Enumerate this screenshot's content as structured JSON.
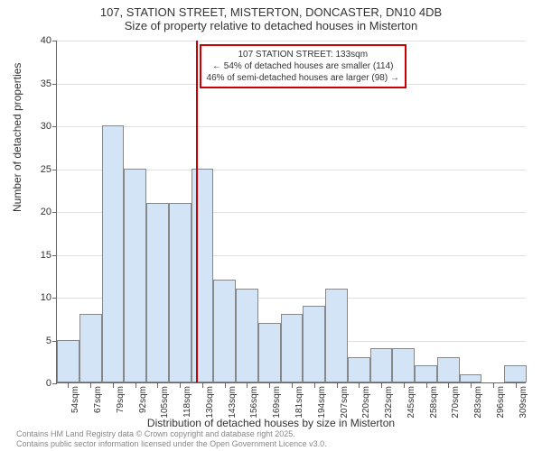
{
  "title": "107, STATION STREET, MISTERTON, DONCASTER, DN10 4DB",
  "subtitle": "Size of property relative to detached houses in Misterton",
  "chart": {
    "type": "histogram",
    "x_categories": [
      "54sqm",
      "67sqm",
      "79sqm",
      "92sqm",
      "105sqm",
      "118sqm",
      "130sqm",
      "143sqm",
      "156sqm",
      "169sqm",
      "181sqm",
      "194sqm",
      "207sqm",
      "220sqm",
      "232sqm",
      "245sqm",
      "258sqm",
      "270sqm",
      "283sqm",
      "296sqm",
      "309sqm"
    ],
    "values": [
      5,
      8,
      30,
      25,
      21,
      21,
      25,
      12,
      11,
      7,
      8,
      9,
      11,
      3,
      4,
      4,
      2,
      3,
      1,
      0,
      2
    ],
    "bar_color": "#d4e4f7",
    "bar_border_color": "#888888",
    "background_color": "#ffffff",
    "grid_color": "#e0e0e0",
    "ylim": [
      0,
      40
    ],
    "ytick_step": 5,
    "yticks": [
      0,
      5,
      10,
      15,
      20,
      25,
      30,
      35,
      40
    ],
    "ylabel": "Number of detached properties",
    "xlabel": "Distribution of detached houses by size in Misterton",
    "label_fontsize": 12,
    "tick_fontsize": 11,
    "reference_line": {
      "position_index": 6.2,
      "color": "#cc0000",
      "width": 2
    },
    "annotation": {
      "line1": "107 STATION STREET: 133sqm",
      "line2": "← 54% of detached houses are smaller (114)",
      "line3": "46% of semi-detached houses are larger (98) →",
      "border_color": "#cc0000",
      "fontsize": 10
    }
  },
  "footer": {
    "line1": "Contains HM Land Registry data © Crown copyright and database right 2025.",
    "line2": "Contains public sector information licensed under the Open Government Licence v3.0."
  }
}
